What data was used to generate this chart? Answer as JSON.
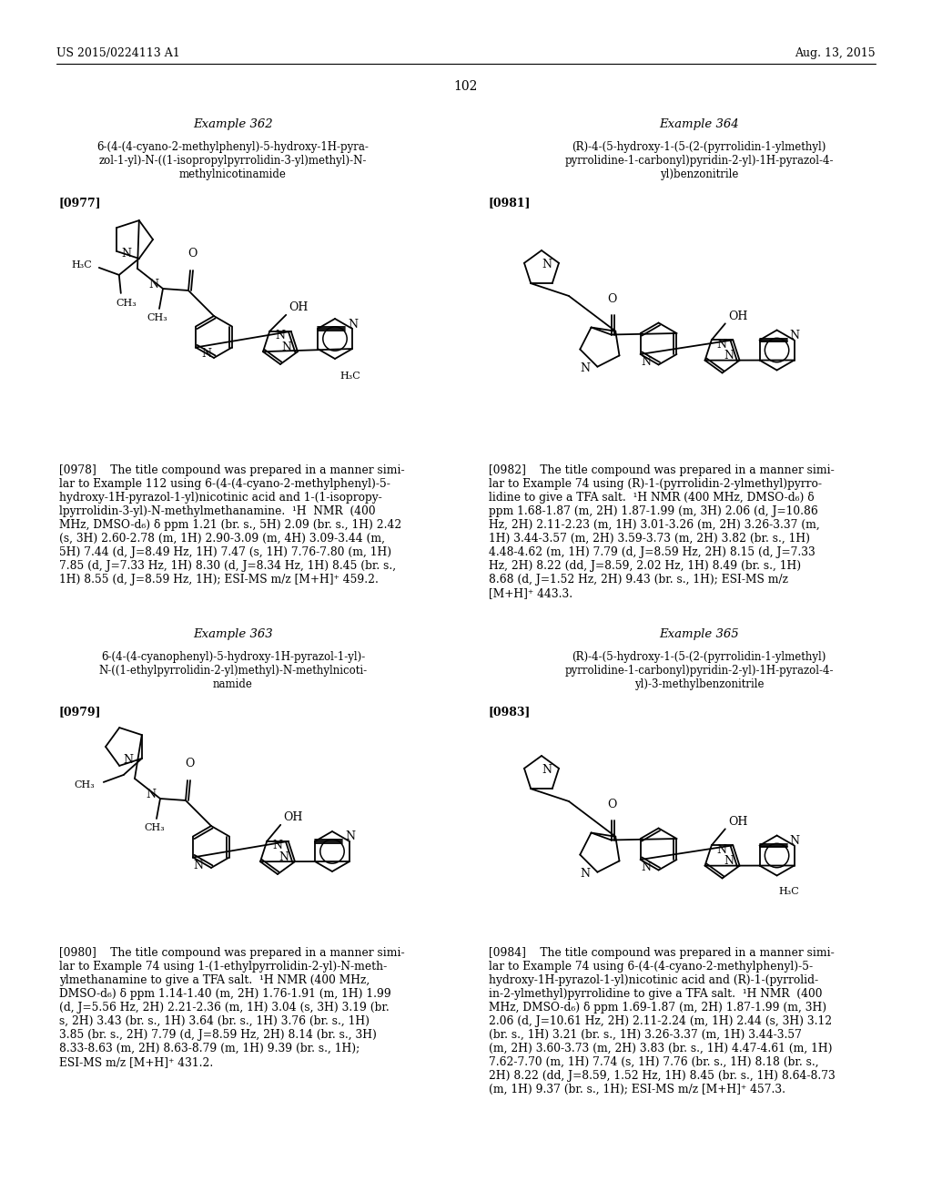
{
  "page_header_left": "US 2015/0224113 A1",
  "page_header_right": "Aug. 13, 2015",
  "page_number": "102",
  "background_color": "#ffffff",
  "text_color": "#000000",
  "nmr_978": "[0978]    The title compound was prepared in a manner simi-\nlar to Example 112 using 6-(4-(4-cyano-2-methylphenyl)-5-\nhydroxy-1H-pyrazol-1-yl)nicotinic acid and 1-(1-isopropy-\nlpyrrolidin-3-yl)-N-methylmethanamine.  ¹H  NMR  (400\nMHz, DMSO-d₆) δ ppm 1.21 (br. s., 5H) 2.09 (br. s., 1H) 2.42\n(s, 3H) 2.60-2.78 (m, 1H) 2.90-3.09 (m, 4H) 3.09-3.44 (m,\n5H) 7.44 (d, J=8.49 Hz, 1H) 7.47 (s, 1H) 7.76-7.80 (m, 1H)\n7.85 (d, J=7.33 Hz, 1H) 8.30 (d, J=8.34 Hz, 1H) 8.45 (br. s.,\n1H) 8.55 (d, J=8.59 Hz, 1H); ESI-MS m/z [M+H]⁺ 459.2.",
  "nmr_980": "[0980]    The title compound was prepared in a manner simi-\nlar to Example 74 using 1-(1-ethylpyrrolidin-2-yl)-N-meth-\nylmethanamine to give a TFA salt.  ¹H NMR (400 MHz,\nDMSO-d₆) δ ppm 1.14-1.40 (m, 2H) 1.76-1.91 (m, 1H) 1.99\n(d, J=5.56 Hz, 2H) 2.21-2.36 (m, 1H) 3.04 (s, 3H) 3.19 (br.\ns, 2H) 3.43 (br. s., 1H) 3.64 (br. s., 1H) 3.76 (br. s., 1H)\n3.85 (br. s., 2H) 7.79 (d, J=8.59 Hz, 2H) 8.14 (br. s., 3H)\n8.33-8.63 (m, 2H) 8.63-8.79 (m, 1H) 9.39 (br. s., 1H);\nESI-MS m/z [M+H]⁺ 431.2.",
  "nmr_982": "[0982]    The title compound was prepared in a manner simi-\nlar to Example 74 using (R)-1-(pyrrolidin-2-ylmethyl)pyrro-\nlidine to give a TFA salt.  ¹H NMR (400 MHz, DMSO-d₆) δ\nppm 1.68-1.87 (m, 2H) 1.87-1.99 (m, 3H) 2.06 (d, J=10.86\nHz, 2H) 2.11-2.23 (m, 1H) 3.01-3.26 (m, 2H) 3.26-3.37 (m,\n1H) 3.44-3.57 (m, 2H) 3.59-3.73 (m, 2H) 3.82 (br. s., 1H)\n4.48-4.62 (m, 1H) 7.79 (d, J=8.59 Hz, 2H) 8.15 (d, J=7.33\nHz, 2H) 8.22 (dd, J=8.59, 2.02 Hz, 1H) 8.49 (br. s., 1H)\n8.68 (d, J=1.52 Hz, 2H) 9.43 (br. s., 1H); ESI-MS m/z\n[M+H]⁺ 443.3.",
  "nmr_984": "[0984]    The title compound was prepared in a manner simi-\nlar to Example 74 using 6-(4-(4-cyano-2-methylphenyl)-5-\nhydroxy-1H-pyrazol-1-yl)nicotinic acid and (R)-1-(pyrrolid-\nin-2-ylmethyl)pyrrolidine to give a TFA salt.  ¹H NMR  (400\nMHz, DMSO-d₆) δ ppm 1.69-1.87 (m, 2H) 1.87-1.99 (m, 3H)\n2.06 (d, J=10.61 Hz, 2H) 2.11-2.24 (m, 1H) 2.44 (s, 3H) 3.12\n(br. s., 1H) 3.21 (br. s., 1H) 3.26-3.37 (m, 1H) 3.44-3.57\n(m, 2H) 3.60-3.73 (m, 2H) 3.83 (br. s., 1H) 4.47-4.61 (m, 1H)\n7.62-7.70 (m, 1H) 7.74 (s, 1H) 7.76 (br. s., 1H) 8.18 (br. s.,\n2H) 8.22 (dd, J=8.59, 1.52 Hz, 1H) 8.45 (br. s., 1H) 8.64-8.73\n(m, 1H) 9.37 (br. s., 1H); ESI-MS m/z [M+H]⁺ 457.3."
}
